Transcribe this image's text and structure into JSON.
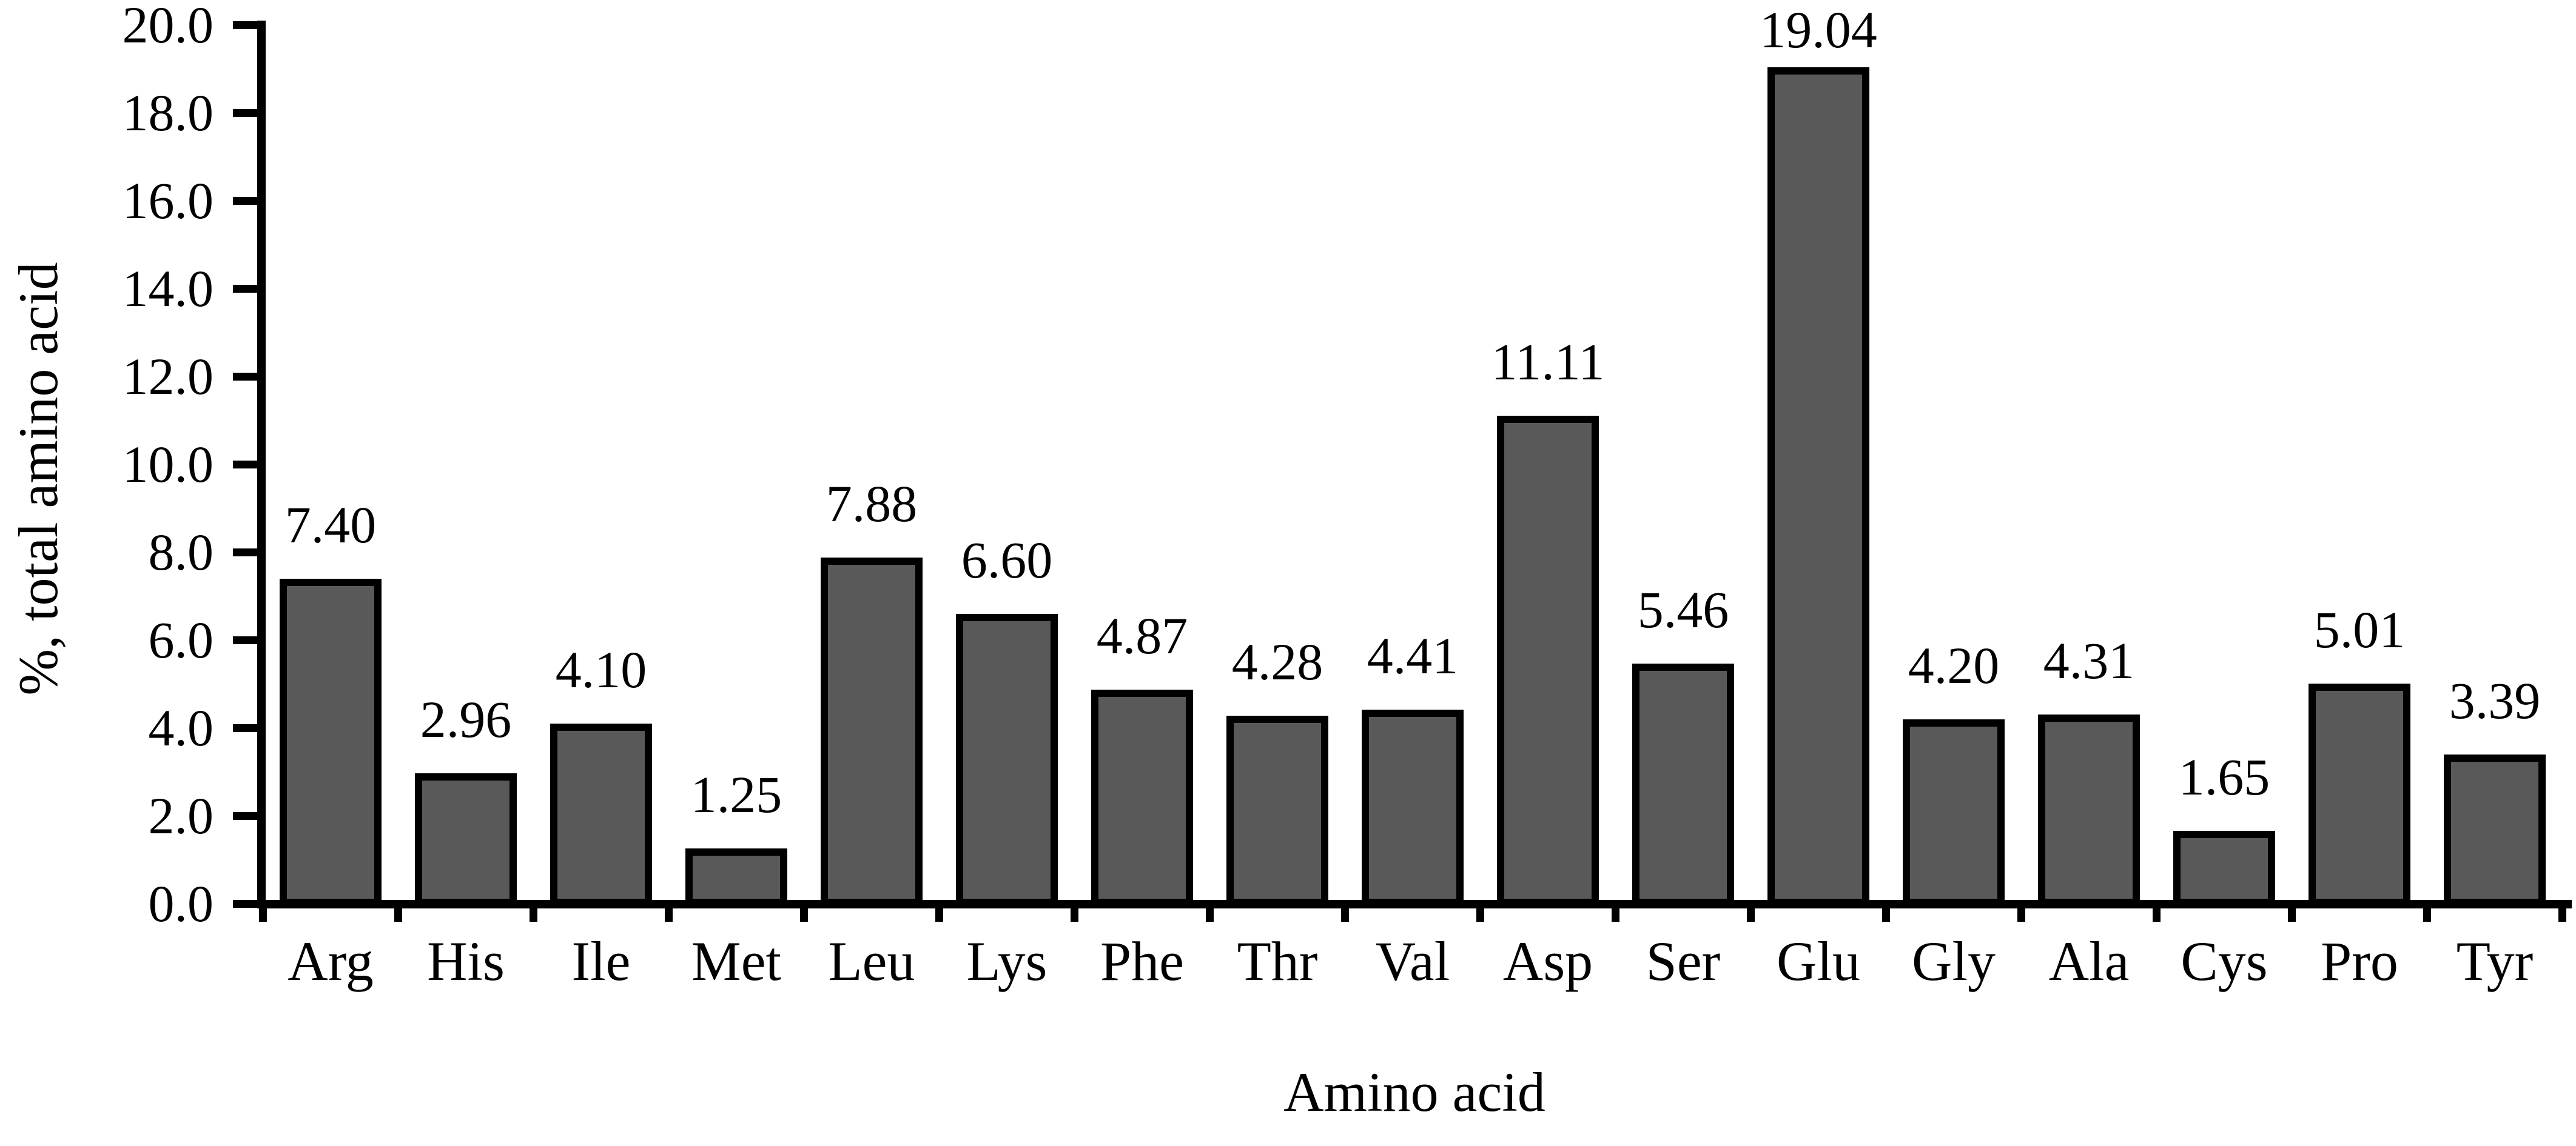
{
  "figure": {
    "background": "#ffffff",
    "bar_fill": "#595959",
    "bar_border": "#000000",
    "axis_color": "#000000",
    "text_color": "#000000"
  },
  "chart_data": {
    "type": "bar",
    "title": "",
    "xlabel": "Amino acid",
    "ylabel": "%, total amino acid",
    "categories": [
      "Arg",
      "His",
      "Ile",
      "Met",
      "Leu",
      "Lys",
      "Phe",
      "Thr",
      "Val",
      "Asp",
      "Ser",
      "Glu",
      "Gly",
      "Ala",
      "Cys",
      "Pro",
      "Tyr"
    ],
    "values": [
      7.4,
      2.96,
      4.1,
      1.25,
      7.88,
      6.6,
      4.87,
      4.28,
      4.41,
      11.11,
      5.46,
      19.04,
      4.2,
      4.31,
      1.65,
      5.01,
      3.39
    ],
    "value_labels": [
      "7.40",
      "2.96",
      "4.10",
      "1.25",
      "7.88",
      "6.60",
      "4.87",
      "4.28",
      "4.41",
      "11.11",
      "5.46",
      "19.04",
      "4.20",
      "4.31",
      "1.65",
      "5.01",
      "3.39"
    ],
    "ylim": [
      0,
      20
    ],
    "ytick_step": 2,
    "ytick_labels": [
      "0.0",
      "2.0",
      "4.0",
      "6.0",
      "8.0",
      "10.0",
      "12.0",
      "14.0",
      "16.0",
      "18.0",
      "20.0"
    ],
    "grid": false,
    "legend": null
  }
}
